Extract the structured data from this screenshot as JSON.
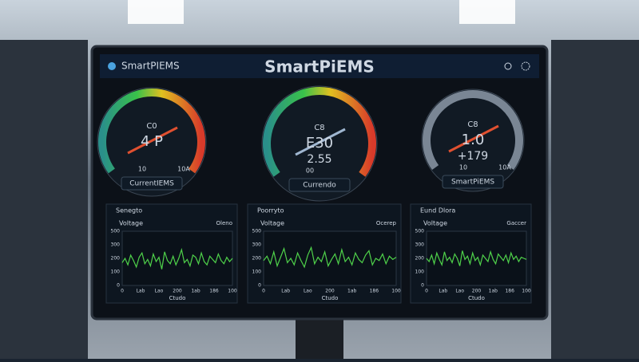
{
  "header": {
    "brand": "SmartPIEMS",
    "title": "SmartPiEMS"
  },
  "gauges": [
    {
      "top": "C0",
      "main": "4 P",
      "left": "10",
      "right": "10A",
      "label": "CurrentIEMS"
    },
    {
      "top": "C8",
      "main": "E30",
      "sub": "2.55",
      "left": "00",
      "label": "Currendo"
    },
    {
      "top": "C8",
      "main": "1.0",
      "sub": "+179",
      "left": "10",
      "right": "10A",
      "label": "SmartPiEMS"
    }
  ],
  "panels": [
    {
      "title": "Senegto",
      "series": "Voltage",
      "legend": "Oleno",
      "yticks": [
        "500",
        "300",
        "200",
        "100",
        "0"
      ],
      "xticks": [
        "0",
        "Lab",
        "Lao",
        "200",
        "1ab",
        "186",
        "100"
      ],
      "xlabel": "Ctudo",
      "values": [
        210,
        250,
        190,
        280,
        230,
        170,
        260,
        300,
        200,
        240,
        180,
        290,
        220,
        260,
        150,
        310,
        230,
        200,
        270,
        190,
        250,
        330,
        210,
        240,
        180,
        280,
        260,
        200,
        300,
        220,
        190,
        270,
        240,
        210,
        290,
        230,
        200,
        260,
        220,
        250
      ]
    },
    {
      "title": "Poorryto",
      "series": "Voltage",
      "legend": "Ocerep",
      "yticks": [
        "500",
        "300",
        "200",
        "100",
        "0"
      ],
      "xticks": [
        "0",
        "Lab",
        "Lao",
        "200",
        "1ab",
        "186",
        "100"
      ],
      "xlabel": "Ctudo",
      "values": [
        230,
        270,
        200,
        310,
        180,
        260,
        340,
        210,
        250,
        190,
        300,
        230,
        170,
        280,
        350,
        200,
        260,
        220,
        310,
        180,
        240,
        290,
        200,
        330,
        220,
        260,
        190,
        300,
        240,
        210,
        280,
        320,
        190,
        250,
        230,
        290,
        200,
        270,
        240,
        260
      ]
    },
    {
      "title": "Eund Dlora",
      "series": "Voltage",
      "legend": "Gaccer",
      "yticks": [
        "500",
        "300",
        "200",
        "100",
        "0"
      ],
      "xticks": [
        "0",
        "Lab",
        "Lao",
        "200",
        "1ab",
        "186",
        "100"
      ],
      "xlabel": "Ctudo",
      "values": [
        250,
        220,
        280,
        200,
        300,
        240,
        190,
        310,
        230,
        260,
        210,
        290,
        250,
        180,
        320,
        240,
        270,
        200,
        300,
        230,
        260,
        190,
        280,
        250,
        220,
        310,
        240,
        200,
        290,
        260,
        230,
        280,
        210,
        300,
        240,
        270,
        220,
        260,
        250,
        240
      ]
    }
  ]
}
